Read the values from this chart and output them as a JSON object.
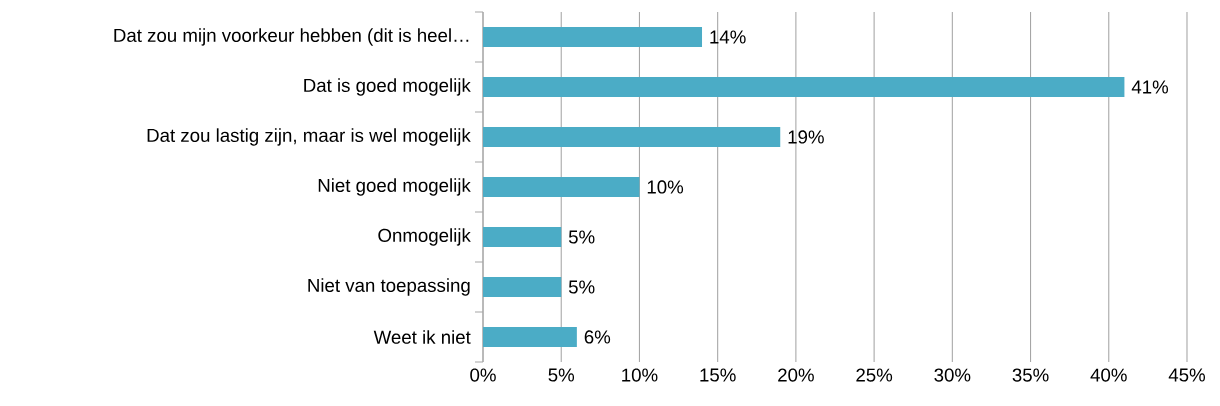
{
  "chart_data": {
    "type": "bar",
    "orientation": "horizontal",
    "categories": [
      "Dat zou mijn voorkeur hebben (dit is heel…",
      "Dat is goed mogelijk",
      "Dat zou lastig zijn, maar is wel mogelijk",
      "Niet goed mogelijk",
      "Onmogelijk",
      "Niet van toepassing",
      "Weet ik niet"
    ],
    "values": [
      14,
      41,
      19,
      10,
      5,
      5,
      6
    ],
    "value_labels": [
      "14%",
      "41%",
      "19%",
      "10%",
      "5%",
      "5%",
      "6%"
    ],
    "color": "#4bacc6",
    "xlim": [
      0,
      45
    ],
    "xticks": [
      {
        "value": 0,
        "label": "0%"
      },
      {
        "value": 5,
        "label": "5%"
      },
      {
        "value": 10,
        "label": "10%"
      },
      {
        "value": 15,
        "label": "15%"
      },
      {
        "value": 20,
        "label": "20%"
      },
      {
        "value": 25,
        "label": "25%"
      },
      {
        "value": 30,
        "label": "30%"
      },
      {
        "value": 35,
        "label": "35%"
      },
      {
        "value": 40,
        "label": "40%"
      },
      {
        "value": 45,
        "label": "45%"
      }
    ],
    "grid": "x"
  }
}
